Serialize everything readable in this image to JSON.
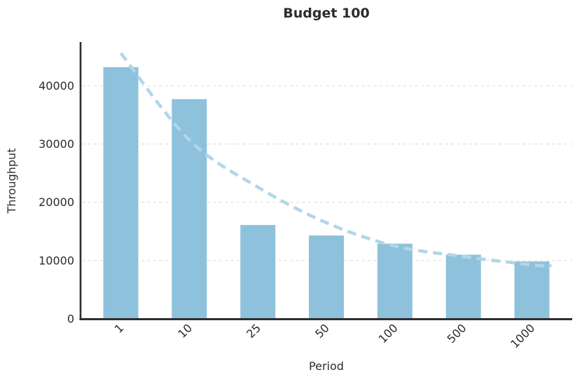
{
  "figure": {
    "title": "Budget 100",
    "xlabel": "Period",
    "ylabel": "Throughput"
  },
  "chart_data": {
    "type": "bar",
    "title": "Budget 100",
    "xlabel": "Period",
    "ylabel": "Throughput",
    "categories": [
      "1",
      "10",
      "25",
      "50",
      "100",
      "500",
      "1000"
    ],
    "series": [
      {
        "name": "Throughput bars",
        "type": "bar",
        "values": [
          43200,
          37700,
          16100,
          14300,
          12900,
          11000,
          9850
        ]
      },
      {
        "name": "Trend",
        "type": "dashed-line",
        "values_at_categories": [
          45600,
          30700,
          22600,
          16500,
          12500,
          10700,
          9250
        ],
        "extension_value": 9100
      }
    ],
    "yticks": [
      0,
      10000,
      20000,
      30000,
      40000
    ],
    "ylim": [
      0,
      47500
    ],
    "grid": {
      "axis": "y",
      "style": "dashed",
      "gridlines_at": [
        10000,
        20000,
        30000,
        40000
      ]
    },
    "legend": "none",
    "x_tick_rotation_deg": 45,
    "colors": {
      "bar": "#8ec2dc",
      "trend": "#b1d6e8",
      "axis": "#2e2e2e",
      "grid": "#e3e3e3",
      "text": "#2b2b2b",
      "background": "#ffffff"
    }
  }
}
